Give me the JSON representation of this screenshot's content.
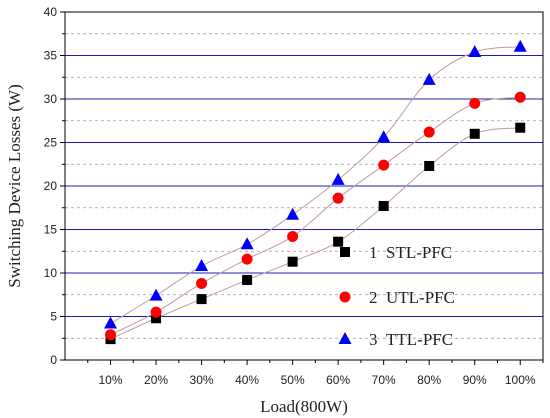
{
  "chart_data": {
    "type": "line",
    "xlabel": "Load(800W)",
    "ylabel": "Switching Device Losses (W)",
    "categories": [
      "10%",
      "20%",
      "30%",
      "40%",
      "50%",
      "60%",
      "70%",
      "80%",
      "90%",
      "100%"
    ],
    "ylim": [
      0,
      40
    ],
    "yticks": [
      0,
      5,
      10,
      15,
      20,
      25,
      30,
      35,
      40
    ],
    "grid": true,
    "legend_position": "bottom-right",
    "series": [
      {
        "name": "STL-PFC",
        "number": "1",
        "marker": "square",
        "color": "#000000",
        "values": [
          2.4,
          4.8,
          7.0,
          9.2,
          11.3,
          13.6,
          17.7,
          22.3,
          26.0,
          26.7
        ]
      },
      {
        "name": "UTL-PFC",
        "number": "2",
        "marker": "circle",
        "color": "#ff0000",
        "values": [
          2.9,
          5.5,
          8.8,
          11.6,
          14.2,
          18.6,
          22.4,
          26.2,
          29.5,
          30.2
        ]
      },
      {
        "name": "TTL-PFC",
        "number": "3",
        "marker": "triangle",
        "color": "#0000ff",
        "values": [
          4.2,
          7.4,
          10.8,
          13.3,
          16.7,
          20.7,
          25.6,
          32.2,
          35.4,
          36.0
        ]
      }
    ]
  }
}
